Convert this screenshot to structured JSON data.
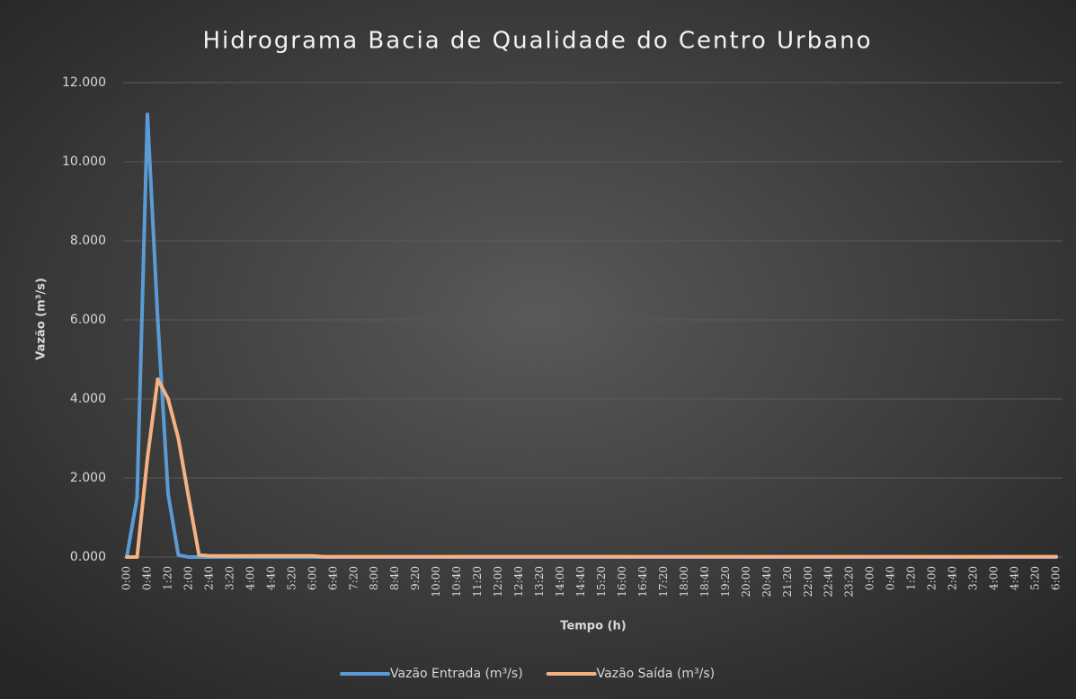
{
  "chart_data": {
    "type": "line",
    "title": "Hidrograma Bacia de Qualidade do Centro Urbano",
    "xlabel": "Tempo (h)",
    "ylabel": "Vazão (m³/s)",
    "categories": [
      "0:00",
      null,
      "0:40",
      null,
      "1:20",
      null,
      "2:00",
      null,
      "2:40",
      null,
      "3:20",
      null,
      "4:00",
      null,
      "4:40",
      null,
      "5:20",
      null,
      "6:00",
      null,
      "6:40",
      null,
      "7:20",
      null,
      "8:00",
      null,
      "8:40",
      null,
      "9:20",
      null,
      "10:00",
      null,
      "10:40",
      null,
      "11:20",
      null,
      "12:00",
      null,
      "12:40",
      null,
      "13:20",
      null,
      "14:00",
      null,
      "14:40",
      null,
      "15:20",
      null,
      "16:00",
      null,
      "16:40",
      null,
      "17:20",
      null,
      "18:00",
      null,
      "18:40",
      null,
      "19:20",
      null,
      "20:00",
      null,
      "20:40",
      null,
      "21:20",
      null,
      "22:00",
      null,
      "22:40",
      null,
      "23:20",
      null,
      "0:00",
      null,
      "0:40",
      null,
      "1:20",
      null,
      "2:00",
      null,
      "2:40",
      null,
      "3:20",
      null,
      "4:00",
      null,
      "4:40",
      null,
      "5:20",
      null,
      "6:00"
    ],
    "series": [
      {
        "name": "Vazão Entrada (m³/s)",
        "color": "#5b9bd5",
        "values": [
          0,
          1.5,
          11.2,
          6,
          1.6,
          0.05,
          0,
          0,
          0,
          0,
          0,
          0,
          0,
          0,
          0,
          0,
          0,
          0,
          0,
          0,
          0,
          0,
          0,
          0,
          0,
          0,
          0,
          0,
          0,
          0,
          0,
          0,
          0,
          0,
          0,
          0,
          0,
          0,
          0,
          0,
          0,
          0,
          0,
          0,
          0,
          0,
          0,
          0,
          0,
          0,
          0,
          0,
          0,
          0,
          0,
          0,
          0,
          0,
          0,
          0,
          0,
          0,
          0,
          0,
          0,
          0,
          0,
          0,
          0,
          0,
          0,
          0,
          0,
          0,
          0,
          0,
          0,
          0,
          0,
          0,
          0,
          0,
          0,
          0,
          0,
          0,
          0,
          0,
          0,
          0,
          0
        ]
      },
      {
        "name": "Vazão Saída (m³/s)",
        "color": "#f4b183",
        "values": [
          0,
          0,
          2.5,
          4.5,
          4.0,
          3.0,
          1.5,
          0.05,
          0.03,
          0.03,
          0.03,
          0.03,
          0.03,
          0.03,
          0.03,
          0.03,
          0.03,
          0.03,
          0.03,
          0.01,
          0.01,
          0.01,
          0.01,
          0.01,
          0.01,
          0.01,
          0.01,
          0.01,
          0.01,
          0.01,
          0.01,
          0.01,
          0.01,
          0.01,
          0.01,
          0.01,
          0.01,
          0.01,
          0.01,
          0.01,
          0.01,
          0.01,
          0.01,
          0.01,
          0.01,
          0.01,
          0.01,
          0.01,
          0.01,
          0.01,
          0.01,
          0.01,
          0.01,
          0.01,
          0.01,
          0.01,
          0.01,
          0.01,
          0.01,
          0.01,
          0.01,
          0.01,
          0.01,
          0.01,
          0.01,
          0.01,
          0.01,
          0.01,
          0.01,
          0.01,
          0.01,
          0.01,
          0.01,
          0.01,
          0.01,
          0.01,
          0.01,
          0.01,
          0.01,
          0.01,
          0.01,
          0.01,
          0.01,
          0.01,
          0.01,
          0.01,
          0.01,
          0.01,
          0.01,
          0.01,
          0.01
        ]
      }
    ],
    "ylim": [
      0,
      12
    ],
    "yticks": [
      {
        "value": 0,
        "label": "0.000"
      },
      {
        "value": 2,
        "label": "2.000"
      },
      {
        "value": 4,
        "label": "4.000"
      },
      {
        "value": 6,
        "label": "6.000"
      },
      {
        "value": 8,
        "label": "8.000"
      },
      {
        "value": 10,
        "label": "10.000"
      },
      {
        "value": 12,
        "label": "12.000"
      }
    ],
    "grid": true,
    "legend": "bottom"
  }
}
